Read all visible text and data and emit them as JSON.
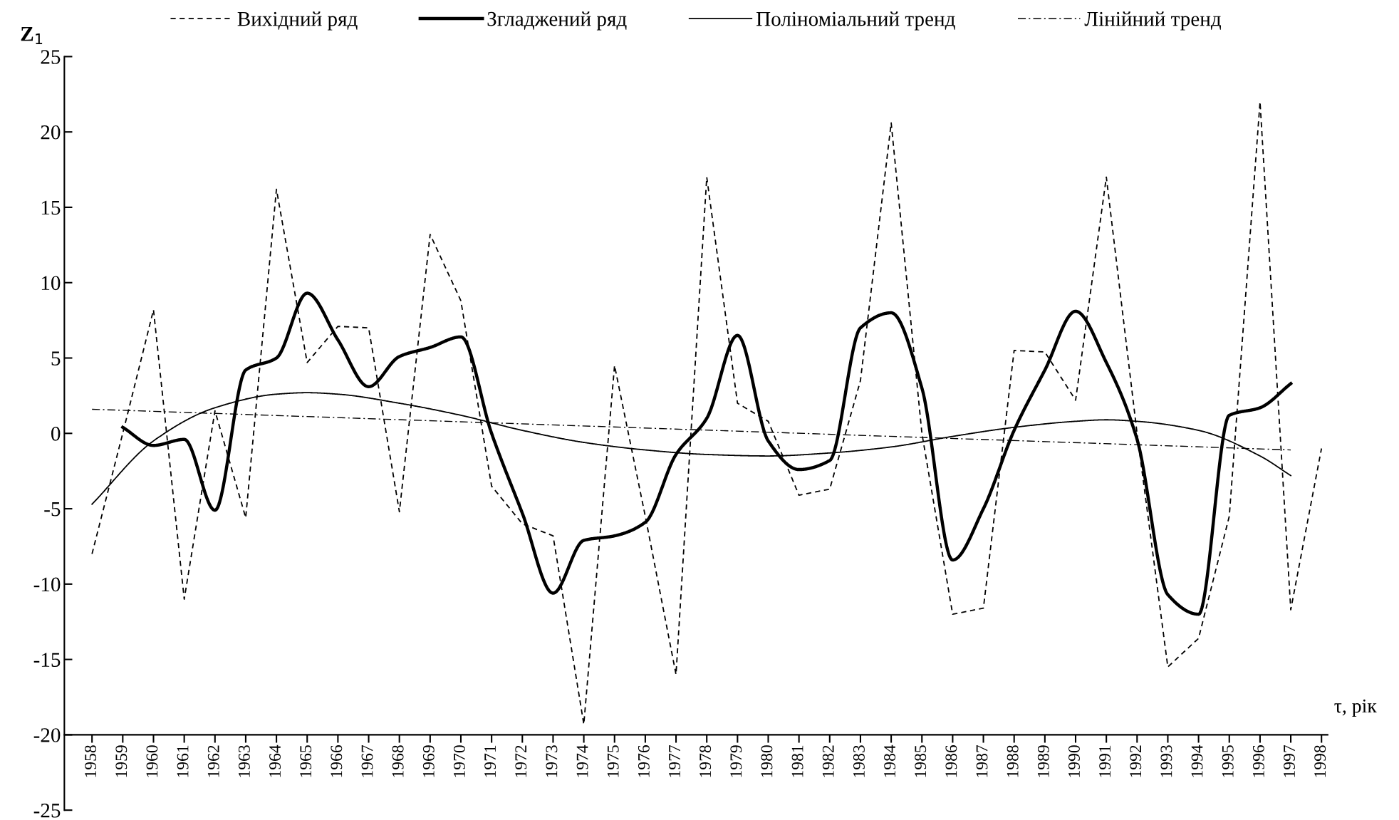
{
  "chart_data": {
    "type": "line",
    "xlabel": "τ, рік",
    "ylabel": "Z$_{1}$",
    "x": [
      1958,
      1959,
      1960,
      1961,
      1962,
      1963,
      1964,
      1965,
      1966,
      1967,
      1968,
      1969,
      1970,
      1971,
      1972,
      1973,
      1974,
      1975,
      1976,
      1977,
      1978,
      1979,
      1980,
      1981,
      1982,
      1983,
      1984,
      1985,
      1986,
      1987,
      1988,
      1989,
      1990,
      1991,
      1992,
      1993,
      1994,
      1995,
      1996,
      1997,
      1998
    ],
    "series": [
      {
        "name": "Вихідний ряд",
        "color": "#000000",
        "line_style": "dashed",
        "values": [
          -8,
          0,
          8.2,
          -11,
          1.5,
          -5.6,
          16.2,
          4.7,
          7.1,
          7,
          -5.2,
          13.2,
          8.8,
          -3.5,
          -6,
          -6.8,
          -19.3,
          4.5,
          -5.5,
          -16,
          17,
          2,
          0.8,
          -4.1,
          -3.7,
          3.5,
          20.6,
          0,
          -12,
          -11.6,
          5.5,
          5.4,
          2.2,
          17,
          0,
          -15.5,
          -13.6,
          -5.5,
          22,
          -11.7,
          -1
        ]
      },
      {
        "name": "Згладжений ряд",
        "color": "#000000",
        "line_style": "solid",
        "x": [
          1959,
          1960,
          1961,
          1962,
          1963,
          1964,
          1965,
          1966,
          1967,
          1968,
          1969,
          1970,
          1971,
          1972,
          1973,
          1974,
          1975,
          1976,
          1977,
          1978,
          1979,
          1980,
          1981,
          1982,
          1983,
          1984,
          1985,
          1986,
          1987,
          1988,
          1989,
          1990,
          1991,
          1992,
          1993,
          1994,
          1995,
          1996,
          1997
        ],
        "values": [
          0.4,
          -0.8,
          -0.4,
          -5.1,
          4.2,
          5,
          9.3,
          6.2,
          3.1,
          5.1,
          5.7,
          6.4,
          0,
          -5.3,
          -10.6,
          -7.1,
          -6.8,
          -5.9,
          -1.4,
          1,
          6.5,
          -0.5,
          -2.4,
          -1.8,
          7,
          8,
          3,
          -8.4,
          -5,
          0.2,
          4.2,
          8.1,
          4.7,
          -0.4,
          -10.7,
          -12,
          1.2,
          1.7,
          3.3
        ]
      },
      {
        "name": "Поліноміальний тренд",
        "color": "#000000",
        "line_style": "solid",
        "x": [
          1958,
          1960,
          1962,
          1964,
          1965,
          1966,
          1968,
          1970,
          1972,
          1974,
          1976,
          1978,
          1980,
          1982,
          1984,
          1986,
          1988,
          1990,
          1991,
          1992,
          1994,
          1996,
          1997
        ],
        "values": [
          -4.7,
          -0.5,
          1.7,
          2.6,
          2.7,
          2.6,
          2,
          1.2,
          0.2,
          -0.6,
          -1.1,
          -1.4,
          -1.5,
          -1.3,
          -0.9,
          -0.2,
          0.4,
          0.8,
          0.9,
          0.8,
          0.2,
          -1.5,
          -2.8
        ]
      },
      {
        "name": "Лінійний тренд",
        "color": "#000000",
        "line_style": "dashdot",
        "x": [
          1958,
          1997
        ],
        "values": [
          1.6,
          -1.1
        ]
      }
    ],
    "xlim": [
      1957.1,
      1998.2
    ],
    "xticks": [
      1958,
      1959,
      1960,
      1961,
      1962,
      1963,
      1964,
      1965,
      1966,
      1967,
      1968,
      1969,
      1970,
      1971,
      1972,
      1973,
      1974,
      1975,
      1976,
      1977,
      1978,
      1979,
      1980,
      1981,
      1982,
      1983,
      1984,
      1985,
      1986,
      1987,
      1988,
      1989,
      1990,
      1991,
      1992,
      1993,
      1994,
      1995,
      1996,
      1997,
      1998
    ],
    "ylim": [
      -25,
      25
    ],
    "yticks": [
      -25,
      -20,
      -15,
      -10,
      -5,
      0,
      5,
      10,
      15,
      20,
      25
    ],
    "grid": false,
    "legend": "top",
    "marker": "none"
  }
}
